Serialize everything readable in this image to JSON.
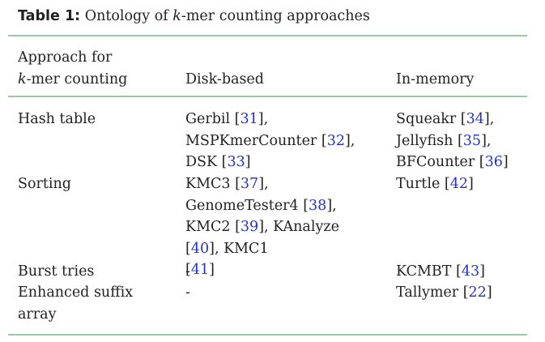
{
  "caption": {
    "label": "Table 1:",
    "text_before": "Ontology of",
    "variable": "k",
    "text_after": "-mer counting approaches"
  },
  "header": {
    "approach_line1": "Approach for",
    "approach_line2_var": "k",
    "approach_line2_rest": "-mer counting",
    "disk": "Disk-based",
    "memory": "In-memory"
  },
  "rows": [
    {
      "approach": [
        "Hash table"
      ],
      "disk": [
        {
          "name": "Gerbil",
          "ref": "31",
          "after": ","
        },
        {
          "name": "MSPKmerCounter",
          "ref": "32",
          "after": ","
        },
        {
          "name": "DSK",
          "ref": "33",
          "after": ""
        }
      ],
      "memory": [
        {
          "name": "Squeakr",
          "ref": "34",
          "after": ","
        },
        {
          "name": "Jellyfish",
          "ref": "35",
          "after": ","
        },
        {
          "name": "BFCounter",
          "ref": "36",
          "after": ""
        }
      ]
    },
    {
      "approach": [
        "Sorting"
      ],
      "disk": [
        {
          "name": "KMC3",
          "ref": "37",
          "after": ","
        },
        {
          "name": "GenomeTester4",
          "ref": "38",
          "after": ","
        },
        {
          "name": "KMC2",
          "ref": "39",
          "after": ", KAnalyze"
        },
        {
          "name": "",
          "ref": "40",
          "after": ", KMC1"
        },
        {
          "name": "",
          "ref": "41",
          "after": ""
        }
      ],
      "memory": [
        {
          "name": "Turtle",
          "ref": "42",
          "after": ""
        }
      ]
    },
    {
      "approach": [
        "Burst tries"
      ],
      "disk": [
        {
          "name": "-",
          "ref": "",
          "after": ""
        }
      ],
      "memory": [
        {
          "name": "KCMBT",
          "ref": "43",
          "after": ""
        }
      ]
    },
    {
      "approach": [
        "Enhanced suffix",
        "array"
      ],
      "disk": [
        {
          "name": "-",
          "ref": "",
          "after": ""
        }
      ],
      "memory": [
        {
          "name": "Tallymer",
          "ref": "22",
          "after": ""
        }
      ]
    }
  ],
  "colors": {
    "rule": "#9cc9a3",
    "reference_link": "#2233cc",
    "text": "#222222"
  }
}
